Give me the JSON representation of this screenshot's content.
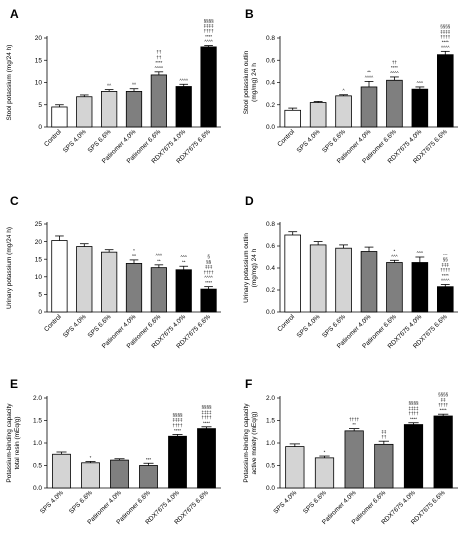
{
  "figure": {
    "colors": {
      "control": "#ffffff",
      "sps": "#d4d4d4",
      "patiromer": "#7f7f7f",
      "rdx": "#000000"
    }
  },
  "chart_data": [
    {
      "panel": "A",
      "type": "bar",
      "title": "",
      "ylabel": "Stool potassium (mg/24 h)",
      "ylim": [
        0,
        20
      ],
      "yticks": [
        0,
        5,
        10,
        15,
        20
      ],
      "categories": [
        "Control",
        "SPS 4.0%",
        "SPS 6.6%",
        "Patiromer 4.0%",
        "Patiromer 6.6%",
        "RDX7675 4.0%",
        "RDX7675 6.6%"
      ],
      "values": [
        4.5,
        6.8,
        8.0,
        8.0,
        11.7,
        9.1,
        18.0
      ],
      "errors": [
        0.5,
        0.4,
        0.4,
        0.6,
        0.7,
        0.5,
        0.3
      ],
      "fills": [
        "control",
        "sps",
        "sps",
        "patiromer",
        "patiromer",
        "rdx",
        "rdx"
      ],
      "annotations": [
        [],
        [],
        [
          "^^"
        ],
        [
          "^^"
        ],
        [
          "^^^^",
          "****",
          "††",
          "††"
        ],
        [
          "^^^^"
        ],
        [
          "^^^^",
          "****",
          "††††",
          "‡‡‡‡",
          "§§§§"
        ]
      ]
    },
    {
      "panel": "B",
      "type": "bar",
      "title": "",
      "ylabel": "Stool potassium outlin (mg/mg) 24 h",
      "ylim": [
        0,
        0.8
      ],
      "yticks": [
        0.0,
        0.2,
        0.4,
        0.6,
        0.8
      ],
      "categories": [
        "Control",
        "SPS 4.0%",
        "SPS 6.6%",
        "Patiromer 4.0%",
        "Patiromer 6.6%",
        "RDX7675 4.0%",
        "RDX7675 6.6%"
      ],
      "values": [
        0.15,
        0.22,
        0.28,
        0.36,
        0.42,
        0.34,
        0.65
      ],
      "errors": [
        0.02,
        0.01,
        0.01,
        0.05,
        0.03,
        0.02,
        0.03
      ],
      "fills": [
        "control",
        "sps",
        "sps",
        "patiromer",
        "patiromer",
        "rdx",
        "rdx"
      ],
      "annotations": [
        [],
        [],
        [
          "^"
        ],
        [
          "^^^^",
          "**"
        ],
        [
          "^^^^",
          "****",
          "††"
        ],
        [
          "^^^"
        ],
        [
          "^^^^",
          "****",
          "††††",
          "‡‡‡‡",
          "§§§§"
        ]
      ]
    },
    {
      "panel": "C",
      "type": "bar",
      "title": "",
      "ylabel": "Urinary potassium (mg/24 h)",
      "ylim": [
        0,
        25
      ],
      "yticks": [
        0,
        5,
        10,
        15,
        20,
        25
      ],
      "categories": [
        "Control",
        "SPS 4.0%",
        "SPS 6.6%",
        "Patiromer 4.0%",
        "Patiromer 6.6%",
        "RDX7675 4.0%",
        "RDX7675 6.6%"
      ],
      "values": [
        20.3,
        18.6,
        17.0,
        13.8,
        12.6,
        12.0,
        6.5
      ],
      "errors": [
        1.3,
        0.8,
        0.7,
        1.0,
        0.8,
        1.0,
        0.7
      ],
      "fills": [
        "control",
        "sps",
        "sps",
        "patiromer",
        "patiromer",
        "rdx",
        "rdx"
      ],
      "annotations": [
        [],
        [],
        [],
        [
          "^^",
          "*"
        ],
        [
          "**",
          "^^^"
        ],
        [
          "**",
          "^^^"
        ],
        [
          "****",
          "^^^^",
          "††††",
          "‡‡‡",
          "§§",
          "§"
        ]
      ]
    },
    {
      "panel": "D",
      "type": "bar",
      "title": "",
      "ylabel": "Urinary potassium outlin (mg/mg) 24 h",
      "ylim": [
        0,
        0.8
      ],
      "yticks": [
        0.0,
        0.2,
        0.4,
        0.6,
        0.8
      ],
      "categories": [
        "Control",
        "SPS 4.0%",
        "SPS 6.6%",
        "Patiromer 4.0%",
        "Patiromer 6.6%",
        "RDX7675 4.0%",
        "RDX7675 6.6%"
      ],
      "values": [
        0.7,
        0.61,
        0.58,
        0.55,
        0.45,
        0.45,
        0.23
      ],
      "errors": [
        0.03,
        0.03,
        0.03,
        0.04,
        0.02,
        0.05,
        0.02
      ],
      "fills": [
        "control",
        "sps",
        "sps",
        "patiromer",
        "patiromer",
        "rdx",
        "rdx"
      ],
      "annotations": [
        [],
        [],
        [],
        [],
        [
          "^^^",
          "*"
        ],
        [
          "^^^"
        ],
        [
          "^^^^",
          "****",
          "††††",
          "‡‡‡",
          "§§",
          "---"
        ]
      ]
    },
    {
      "panel": "E",
      "type": "bar",
      "title": "",
      "ylabel": "Potassium-binding capacity total resin (mEq/g)",
      "ylim": [
        0,
        2.0
      ],
      "yticks": [
        0.0,
        0.5,
        1.0,
        1.5,
        2.0
      ],
      "categories": [
        "SPS 4.0%",
        "SPS 6.6%",
        "Patiromer 4.0%",
        "Patiromer 6.6%",
        "RDX7675 4.0%",
        "RDX7675 6.6%"
      ],
      "values": [
        0.75,
        0.56,
        0.62,
        0.5,
        1.15,
        1.32
      ],
      "errors": [
        0.05,
        0.03,
        0.03,
        0.05,
        0.04,
        0.04
      ],
      "fills": [
        "sps",
        "sps",
        "patiromer",
        "patiromer",
        "rdx",
        "rdx"
      ],
      "annotations": [
        [],
        [
          "*"
        ],
        [],
        [
          "***"
        ],
        [
          "****",
          "††††",
          "‡‡‡‡",
          "§§§§"
        ],
        [
          "****",
          "††††",
          "‡‡‡‡",
          "§§§§"
        ]
      ]
    },
    {
      "panel": "F",
      "type": "bar",
      "title": "",
      "ylabel": "Potassium-binding capacity active moiety (mEq/g)",
      "ylim": [
        0,
        2.0
      ],
      "yticks": [
        0.0,
        0.5,
        1.0,
        1.5,
        2.0
      ],
      "categories": [
        "SPS 4.0%",
        "SPS 6.6%",
        "Patiromer 4.0%",
        "Patiromer 6.6%",
        "RDX7675 4.0%",
        "RDX7675 6.6%"
      ],
      "values": [
        0.92,
        0.67,
        1.27,
        0.97,
        1.41,
        1.6
      ],
      "errors": [
        0.06,
        0.04,
        0.05,
        0.07,
        0.04,
        0.04
      ],
      "fills": [
        "sps",
        "sps",
        "patiromer",
        "patiromer",
        "rdx",
        "rdx"
      ],
      "annotations": [
        [],
        [
          "*"
        ],
        [
          "**",
          "††††"
        ],
        [
          "††",
          "‡‡"
        ],
        [
          "****",
          "††††",
          "‡‡‡‡",
          "§§§§"
        ],
        [
          "****",
          "††††",
          "‡‡",
          "§§§§"
        ]
      ]
    }
  ]
}
